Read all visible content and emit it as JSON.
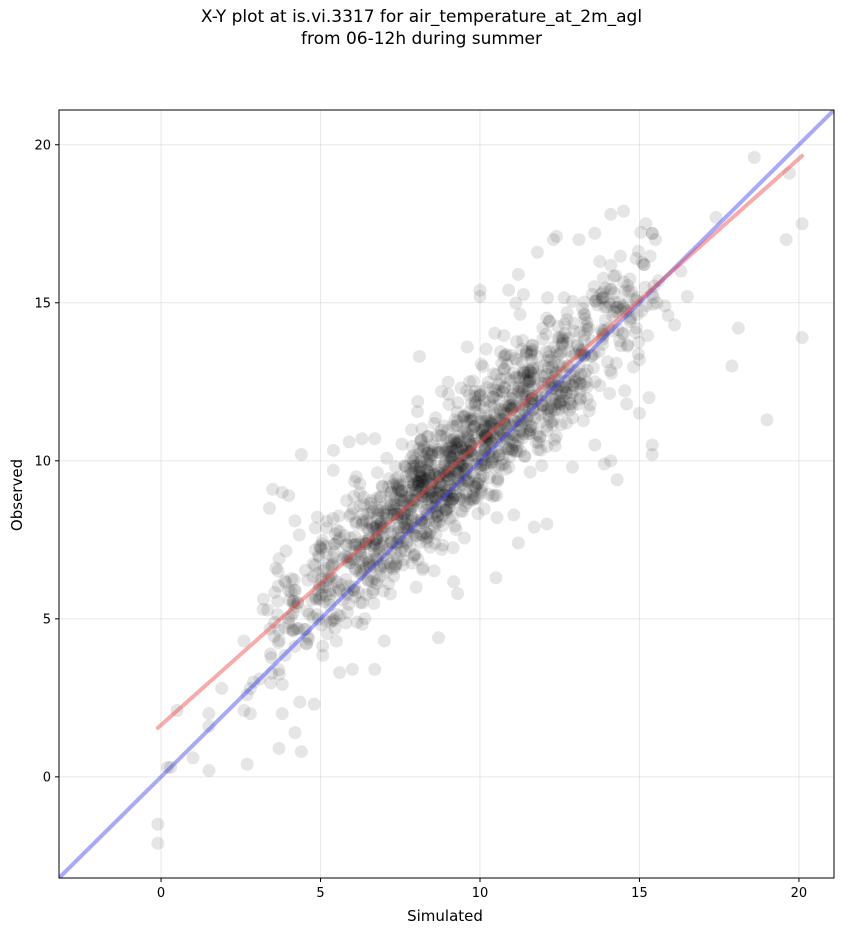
{
  "chart_data": {
    "type": "scatter",
    "title_line1": "X-Y plot at is.vi.3317 for air_temperature_at_2m_agl",
    "title_line2": "from 06-12h during summer",
    "xlabel": "Simulated",
    "ylabel": "Observed",
    "xlim": [
      -3.2,
      21.1
    ],
    "ylim": [
      -3.2,
      21.1
    ],
    "x_ticks": [
      0,
      5,
      10,
      15,
      20
    ],
    "y_ticks": [
      0,
      5,
      10,
      15,
      20
    ],
    "grid": true,
    "point_color": "#000000",
    "identity_line": {
      "color": "#3333ee",
      "from": [
        -3.2,
        -3.2
      ],
      "to": [
        21.1,
        21.1
      ]
    },
    "fit_line": {
      "color": "#ee4444",
      "from": [
        -0.1,
        1.55
      ],
      "to": [
        20.1,
        19.65
      ]
    },
    "points_outlying": [
      [
        18.6,
        19.6
      ],
      [
        19.7,
        19.1
      ],
      [
        20.1,
        17.5
      ],
      [
        19.6,
        17.0
      ],
      [
        18.1,
        14.2
      ],
      [
        17.9,
        13.0
      ],
      [
        20.1,
        13.9
      ],
      [
        19.0,
        11.3
      ],
      [
        17.4,
        17.7
      ],
      [
        15.2,
        17.5
      ],
      [
        15.5,
        17.0
      ],
      [
        14.5,
        17.9
      ],
      [
        14.1,
        17.8
      ],
      [
        15.4,
        17.2
      ],
      [
        14.9,
        16.4
      ],
      [
        15.9,
        14.6
      ],
      [
        16.1,
        14.3
      ],
      [
        15.0,
        13.2
      ],
      [
        15.3,
        12.0
      ],
      [
        15.4,
        10.5
      ],
      [
        15.4,
        10.2
      ],
      [
        14.3,
        9.4
      ],
      [
        15.0,
        11.5
      ],
      [
        14.6,
        11.8
      ],
      [
        13.1,
        17.0
      ],
      [
        12.4,
        17.1
      ],
      [
        11.8,
        16.6
      ],
      [
        11.2,
        15.9
      ],
      [
        10.9,
        15.4
      ],
      [
        10.0,
        15.2
      ],
      [
        10.0,
        15.4
      ],
      [
        9.6,
        13.6
      ],
      [
        8.1,
        13.3
      ],
      [
        6.7,
        10.7
      ],
      [
        6.3,
        10.7
      ],
      [
        5.9,
        10.6
      ],
      [
        4.4,
        10.2
      ],
      [
        5.4,
        9.7
      ],
      [
        3.5,
        9.1
      ],
      [
        3.8,
        9.0
      ],
      [
        3.4,
        8.5
      ],
      [
        4.0,
        8.9
      ],
      [
        4.2,
        8.1
      ],
      [
        3.6,
        6.6
      ],
      [
        3.7,
        6.9
      ],
      [
        2.6,
        4.3
      ],
      [
        3.2,
        5.3
      ],
      [
        2.9,
        3.0
      ],
      [
        2.8,
        2.8
      ],
      [
        3.1,
        3.1
      ],
      [
        2.7,
        2.6
      ],
      [
        2.6,
        2.1
      ],
      [
        2.8,
        2.0
      ],
      [
        3.8,
        2.0
      ],
      [
        1.9,
        2.8
      ],
      [
        0.5,
        2.1
      ],
      [
        1.5,
        2.0
      ],
      [
        1.5,
        1.6
      ],
      [
        3.7,
        0.9
      ],
      [
        4.2,
        1.4
      ],
      [
        4.4,
        0.8
      ],
      [
        1.0,
        0.6
      ],
      [
        1.5,
        0.2
      ],
      [
        2.7,
        0.4
      ],
      [
        0.2,
        0.3
      ],
      [
        0.3,
        0.3
      ],
      [
        -0.1,
        -1.5
      ],
      [
        -0.1,
        -2.1
      ],
      [
        4.8,
        2.3
      ],
      [
        5.6,
        3.3
      ],
      [
        6.0,
        3.4
      ],
      [
        6.7,
        3.4
      ],
      [
        7.0,
        4.3
      ],
      [
        8.7,
        4.4
      ],
      [
        10.5,
        6.3
      ],
      [
        11.2,
        7.4
      ],
      [
        11.7,
        7.9
      ],
      [
        12.1,
        8.0
      ],
      [
        9.3,
        5.8
      ],
      [
        8.0,
        6.0
      ],
      [
        12.9,
        9.8
      ],
      [
        13.6,
        10.5
      ],
      [
        13.9,
        9.9
      ],
      [
        14.1,
        10.0
      ],
      [
        12.3,
        17.0
      ],
      [
        13.6,
        17.2
      ],
      [
        16.3,
        16.0
      ],
      [
        15.6,
        15.7
      ],
      [
        15.8,
        14.9
      ],
      [
        14.9,
        14.2
      ],
      [
        16.5,
        15.2
      ]
    ],
    "points_core_count": 1400,
    "points_core_model": {
      "x_mean": 9.4,
      "x_sd": 2.95,
      "y_intercept": 1.55,
      "y_slope": 0.9,
      "y_noise_sd": 1.05,
      "x_min": 3.2,
      "x_max": 15.6
    }
  }
}
